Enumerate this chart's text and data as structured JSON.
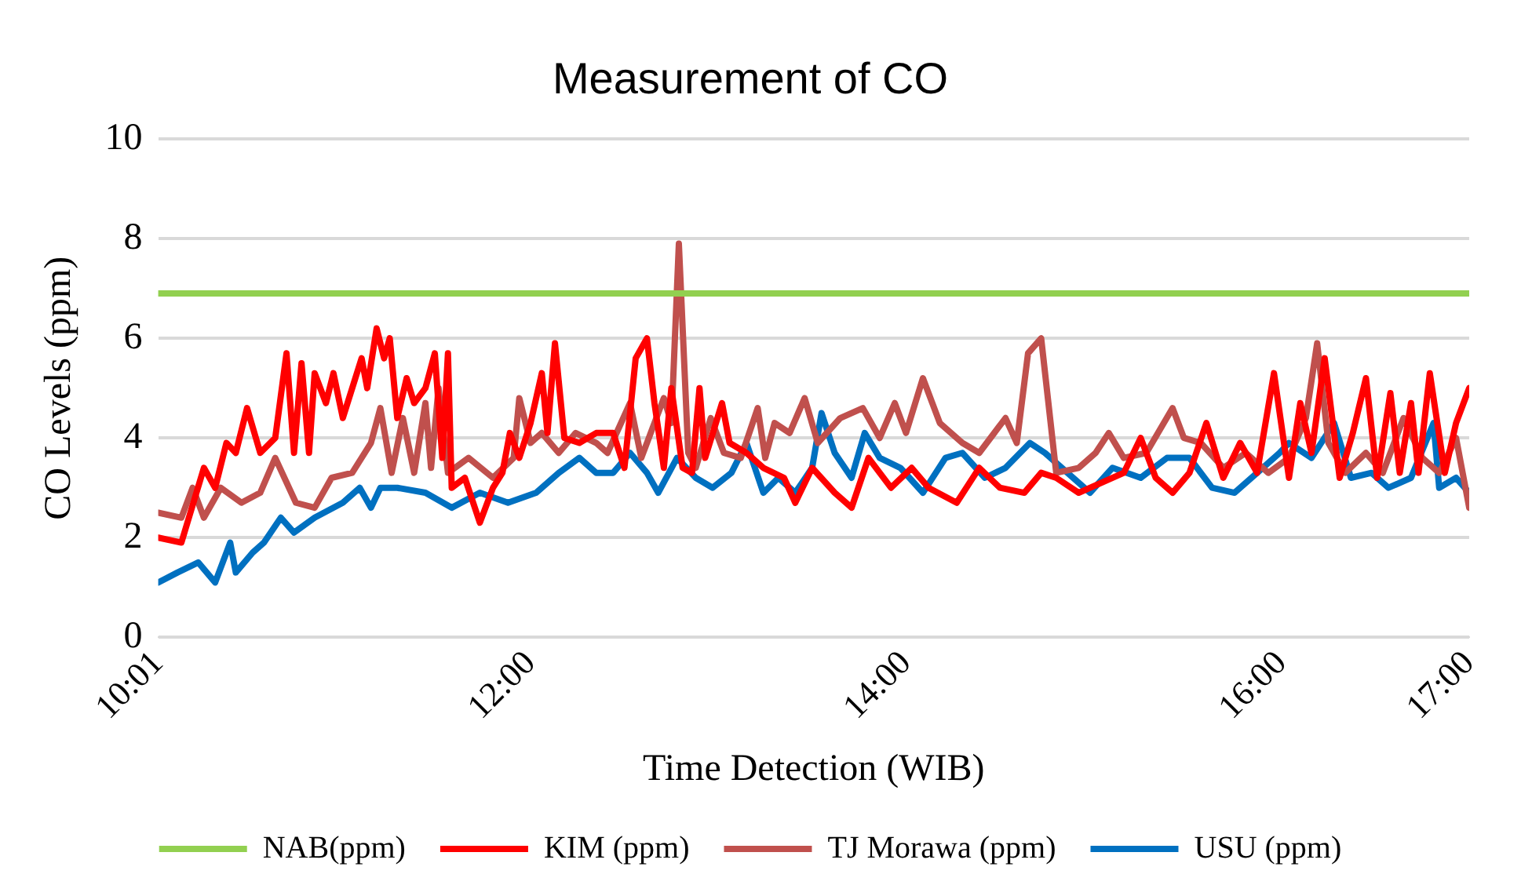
{
  "chart_data": {
    "type": "line",
    "title": "Measurement of CO",
    "xlabel": "Time Detection (WIB)",
    "ylabel": "CO Levels (ppm)",
    "xlim": [
      10.0167,
      17
    ],
    "xticks": [
      {
        "value": 10.0167,
        "label": "10:01"
      },
      {
        "value": 12,
        "label": "12:00"
      },
      {
        "value": 14,
        "label": "14:00"
      },
      {
        "value": 16,
        "label": "16:00"
      },
      {
        "value": 17,
        "label": "17:00"
      }
    ],
    "ylim": [
      0,
      10
    ],
    "yticks": [
      0,
      2,
      4,
      6,
      8,
      10
    ],
    "grid": "y",
    "legend": "bottom",
    "series": [
      {
        "name": "NAB(ppm)",
        "color": "#92d050",
        "x": [
          10.0167,
          17
        ],
        "values": [
          6.9,
          6.9
        ]
      },
      {
        "name": "KIM (ppm)",
        "color": "#ff0000",
        "x": [
          10.0167,
          10.14,
          10.26,
          10.32,
          10.38,
          10.43,
          10.49,
          10.56,
          10.64,
          10.7,
          10.74,
          10.78,
          10.82,
          10.85,
          10.91,
          10.95,
          11.0,
          11.05,
          11.1,
          11.13,
          11.18,
          11.22,
          11.25,
          11.29,
          11.34,
          11.38,
          11.44,
          11.49,
          11.53,
          11.56,
          11.58,
          11.65,
          11.73,
          11.8,
          11.85,
          11.89,
          11.94,
          12.0,
          12.06,
          12.09,
          12.13,
          12.18,
          12.26,
          12.35,
          12.44,
          12.5,
          12.56,
          12.62,
          12.66,
          12.71,
          12.75,
          12.81,
          12.86,
          12.9,
          12.93,
          13.02,
          13.06,
          13.15,
          13.24,
          13.35,
          13.41,
          13.5,
          13.62,
          13.71,
          13.8,
          13.92,
          14.03,
          14.12,
          14.27,
          14.39,
          14.5,
          14.63,
          14.72,
          14.8,
          14.92,
          15.16,
          15.25,
          15.33,
          15.42,
          15.51,
          15.6,
          15.69,
          15.78,
          15.87,
          15.96,
          16.04,
          16.1,
          16.16,
          16.23,
          16.31,
          16.38,
          16.45,
          16.51,
          16.58,
          16.63,
          16.69,
          16.73,
          16.79,
          16.87,
          16.93,
          17
        ],
        "values": [
          2.0,
          1.9,
          3.4,
          3.0,
          3.9,
          3.7,
          4.6,
          3.7,
          4.0,
          5.7,
          3.7,
          5.5,
          3.7,
          5.3,
          4.7,
          5.3,
          4.4,
          5.0,
          5.6,
          5.0,
          6.2,
          5.6,
          6.0,
          4.4,
          5.2,
          4.7,
          5.0,
          5.7,
          3.6,
          5.7,
          3.0,
          3.2,
          2.3,
          3.0,
          3.3,
          4.1,
          3.6,
          4.3,
          5.3,
          4.1,
          5.9,
          4.0,
          3.9,
          4.1,
          4.1,
          3.4,
          5.6,
          6.0,
          4.7,
          3.4,
          5.0,
          3.4,
          3.3,
          5.0,
          3.6,
          4.7,
          3.9,
          3.7,
          3.4,
          3.2,
          2.7,
          3.4,
          2.9,
          2.6,
          3.6,
          3.0,
          3.4,
          3.0,
          2.7,
          3.4,
          3.0,
          2.9,
          3.3,
          3.2,
          2.9,
          3.3,
          4.0,
          3.2,
          2.9,
          3.3,
          4.3,
          3.2,
          3.9,
          3.3,
          5.3,
          3.2,
          4.7,
          3.7,
          5.6,
          3.2,
          4.1,
          5.2,
          3.2,
          4.9,
          3.3,
          4.7,
          3.3,
          5.3,
          3.3,
          4.3,
          5.0
        ]
      },
      {
        "name": "TJ Morawa (ppm)",
        "color": "#c0504d",
        "x": [
          10.0167,
          10.14,
          10.2,
          10.26,
          10.35,
          10.46,
          10.56,
          10.64,
          10.75,
          10.85,
          10.94,
          11.05,
          11.15,
          11.2,
          11.26,
          11.32,
          11.38,
          11.44,
          11.47,
          11.51,
          11.56,
          11.67,
          11.8,
          11.91,
          11.94,
          12.0,
          12.06,
          12.15,
          12.24,
          12.35,
          12.41,
          12.53,
          12.59,
          12.71,
          12.75,
          12.79,
          12.84,
          12.88,
          12.96,
          13.03,
          13.12,
          13.21,
          13.25,
          13.3,
          13.38,
          13.46,
          13.53,
          13.65,
          13.77,
          13.86,
          13.94,
          14.0,
          14.09,
          14.18,
          14.3,
          14.39,
          14.53,
          14.59,
          14.65,
          14.72,
          14.8,
          14.92,
          15.01,
          15.08,
          15.16,
          15.28,
          15.42,
          15.48,
          15.57,
          15.69,
          15.81,
          15.93,
          16.04,
          16.13,
          16.19,
          16.25,
          16.34,
          16.45,
          16.54,
          16.65,
          16.75,
          16.84,
          16.93,
          17
        ],
        "values": [
          2.5,
          2.4,
          3.0,
          2.4,
          3.0,
          2.7,
          2.9,
          3.6,
          2.7,
          2.6,
          3.2,
          3.3,
          3.9,
          4.6,
          3.3,
          4.4,
          3.3,
          4.7,
          3.4,
          5.0,
          3.3,
          3.6,
          3.2,
          3.6,
          4.8,
          3.9,
          4.1,
          3.7,
          4.1,
          3.9,
          3.7,
          4.7,
          3.6,
          4.8,
          4.3,
          7.9,
          3.7,
          3.4,
          4.4,
          3.7,
          3.6,
          4.6,
          3.6,
          4.3,
          4.1,
          4.8,
          3.9,
          4.4,
          4.6,
          4.0,
          4.7,
          4.1,
          5.2,
          4.3,
          3.9,
          3.7,
          4.4,
          3.9,
          5.7,
          6.0,
          3.3,
          3.4,
          3.7,
          4.1,
          3.6,
          3.7,
          4.6,
          4.0,
          3.9,
          3.4,
          3.7,
          3.3,
          3.6,
          4.4,
          5.9,
          3.9,
          3.3,
          3.7,
          3.3,
          4.4,
          3.6,
          3.3,
          4.0,
          2.6
        ]
      },
      {
        "name": "USU (ppm)",
        "color": "#0070c0",
        "x": [
          10.0167,
          10.12,
          10.23,
          10.32,
          10.4,
          10.43,
          10.52,
          10.58,
          10.67,
          10.74,
          10.85,
          11.0,
          11.09,
          11.15,
          11.2,
          11.29,
          11.44,
          11.58,
          11.73,
          11.88,
          12.03,
          12.15,
          12.26,
          12.35,
          12.44,
          12.53,
          12.62,
          12.68,
          12.78,
          12.88,
          12.97,
          13.07,
          13.15,
          13.24,
          13.32,
          13.41,
          13.5,
          13.55,
          13.62,
          13.71,
          13.78,
          13.86,
          13.97,
          14.09,
          14.21,
          14.3,
          14.42,
          14.53,
          14.66,
          14.74,
          14.83,
          14.98,
          15.1,
          15.25,
          15.39,
          15.51,
          15.63,
          15.75,
          15.87,
          15.99,
          16.04,
          16.16,
          16.28,
          16.37,
          16.48,
          16.57,
          16.69,
          16.81,
          16.84,
          16.93,
          17
        ],
        "values": [
          1.1,
          1.3,
          1.5,
          1.1,
          1.9,
          1.3,
          1.7,
          1.9,
          2.4,
          2.1,
          2.4,
          2.7,
          3.0,
          2.6,
          3.0,
          3.0,
          2.9,
          2.6,
          2.9,
          2.7,
          2.9,
          3.3,
          3.6,
          3.3,
          3.3,
          3.7,
          3.3,
          2.9,
          3.6,
          3.2,
          3.0,
          3.3,
          3.9,
          2.9,
          3.2,
          2.9,
          3.4,
          4.5,
          3.7,
          3.2,
          4.1,
          3.6,
          3.4,
          2.9,
          3.6,
          3.7,
          3.2,
          3.4,
          3.9,
          3.7,
          3.4,
          2.9,
          3.4,
          3.2,
          3.6,
          3.6,
          3.0,
          2.9,
          3.3,
          3.7,
          3.9,
          3.6,
          4.3,
          3.2,
          3.3,
          3.0,
          3.2,
          4.3,
          3.0,
          3.2,
          2.9
        ]
      }
    ]
  }
}
